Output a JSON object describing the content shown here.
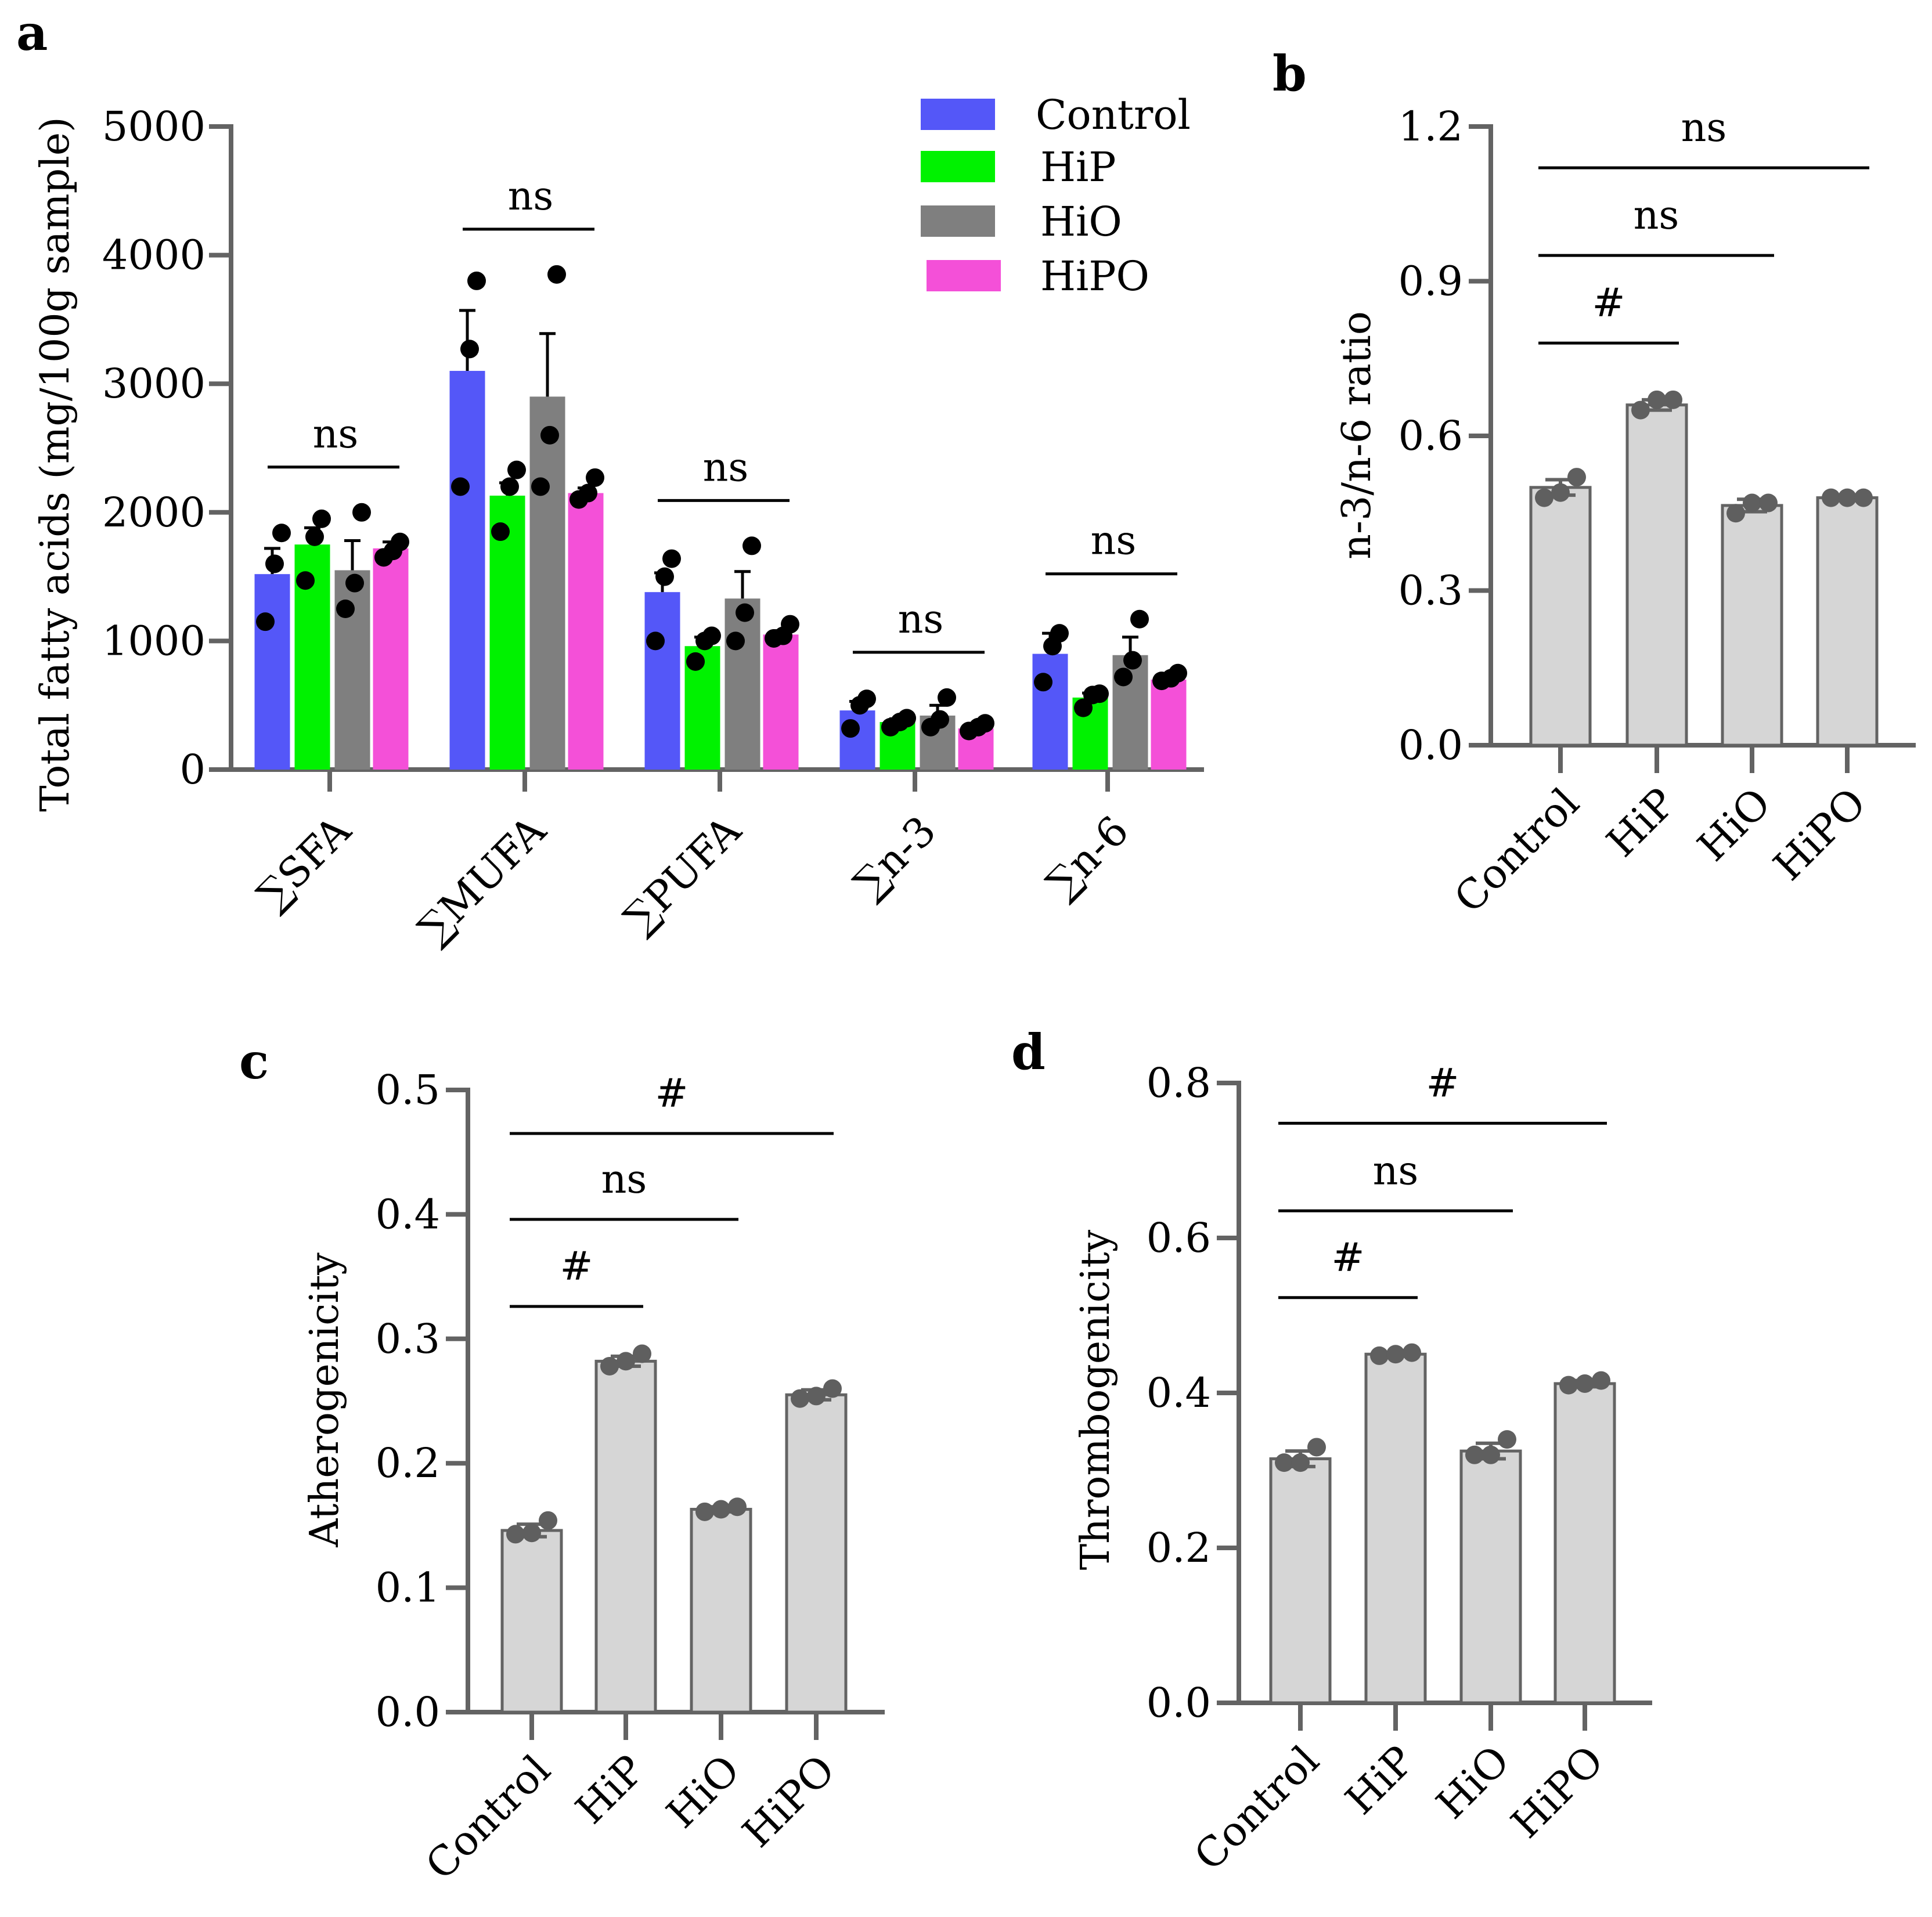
{
  "colors": {
    "Control": "#5457f8",
    "HiP": "#00f200",
    "HiO": "#7f7f7f",
    "HiPO": "#f450d8",
    "gray_bar": "#d6d6d6",
    "gray_edge": "#636363",
    "dot_dark": "#000000",
    "dot_gray": "#5f5f5f"
  },
  "chart_data": [
    {
      "panel": "a",
      "type": "bar",
      "title": "",
      "xlabel": "",
      "ylabel": "Total fatty acids (mg/100g sample)",
      "ylim": [
        0,
        5000
      ],
      "yticks": [
        0,
        1000,
        2000,
        3000,
        4000,
        5000
      ],
      "categories": [
        "∑SFA",
        "∑MUFA",
        "∑PUFA",
        "∑n-3",
        "∑n-6"
      ],
      "legend": {
        "position": "top-right",
        "entries": [
          "Control",
          "HiP",
          "HiO",
          "HiPO"
        ]
      },
      "series": [
        {
          "name": "Control",
          "values": [
            1520,
            3100,
            1380,
            460,
            900
          ],
          "errors": [
            200,
            470,
            150,
            70,
            160
          ],
          "points": [
            [
              1150,
              1600,
              1840
            ],
            [
              2200,
              3270,
              3800
            ],
            [
              1000,
              1500,
              1640
            ],
            [
              320,
              500,
              550
            ],
            [
              680,
              960,
              1060
            ]
          ]
        },
        {
          "name": "HiP",
          "values": [
            1750,
            2130,
            960,
            370,
            560
          ],
          "errors": [
            130,
            100,
            70,
            25,
            35
          ],
          "points": [
            [
              1470,
              1810,
              1950
            ],
            [
              1850,
              2200,
              2330
            ],
            [
              840,
              1000,
              1040
            ],
            [
              330,
              370,
              400
            ],
            [
              480,
              580,
              590
            ]
          ]
        },
        {
          "name": "HiO",
          "values": [
            1550,
            2900,
            1330,
            420,
            890
          ],
          "errors": [
            230,
            490,
            210,
            80,
            140
          ],
          "points": [
            [
              1250,
              1450,
              2000
            ],
            [
              2200,
              2600,
              3850
            ],
            [
              1000,
              1220,
              1740
            ],
            [
              330,
              390,
              560
            ],
            [
              720,
              850,
              1170
            ]
          ]
        },
        {
          "name": "HiPO",
          "values": [
            1720,
            2150,
            1050,
            320,
            700
          ],
          "errors": [
            50,
            40,
            30,
            20,
            20
          ],
          "points": [
            [
              1650,
              1700,
              1770
            ],
            [
              2100,
              2150,
              2270
            ],
            [
              1020,
              1040,
              1130
            ],
            [
              300,
              330,
              360
            ],
            [
              690,
              710,
              750
            ]
          ]
        }
      ],
      "annotations": [
        {
          "category": "∑SFA",
          "text": "ns"
        },
        {
          "category": "∑MUFA",
          "text": "ns"
        },
        {
          "category": "∑PUFA",
          "text": "ns"
        },
        {
          "category": "∑n-3",
          "text": "ns"
        },
        {
          "category": "∑n-6",
          "text": "ns"
        }
      ]
    },
    {
      "panel": "b",
      "type": "bar",
      "title": "",
      "xlabel": "",
      "ylabel": "n-3/n-6 ratio",
      "ylim": [
        0,
        1.2
      ],
      "yticks": [
        "0.0",
        "0.3",
        "0.6",
        "0.9",
        "1.2"
      ],
      "categories": [
        "Control",
        "HiP",
        "HiO",
        "HiPO"
      ],
      "values": [
        0.5,
        0.66,
        0.465,
        0.48
      ],
      "errors": [
        0.015,
        0.01,
        0.012,
        0.003
      ],
      "points": [
        [
          0.48,
          0.49,
          0.52
        ],
        [
          0.65,
          0.67,
          0.67
        ],
        [
          0.45,
          0.47,
          0.47
        ],
        [
          0.48,
          0.48,
          0.48
        ]
      ],
      "brackets": [
        {
          "from": "Control",
          "to": "HiP",
          "text": "#"
        },
        {
          "from": "Control",
          "to": "HiO",
          "text": "ns"
        },
        {
          "from": "Control",
          "to": "HiPO",
          "text": "ns"
        }
      ]
    },
    {
      "panel": "c",
      "type": "bar",
      "title": "",
      "xlabel": "",
      "ylabel": "Atherogenicity",
      "ylim": [
        0,
        0.5
      ],
      "yticks": [
        "0.0",
        "0.1",
        "0.2",
        "0.3",
        "0.4",
        "0.5"
      ],
      "categories": [
        "Control",
        "HiP",
        "HiO",
        "HiPO"
      ],
      "values": [
        0.146,
        0.282,
        0.163,
        0.255
      ],
      "errors": [
        0.005,
        0.004,
        0.002,
        0.004
      ],
      "points": [
        [
          0.143,
          0.144,
          0.154
        ],
        [
          0.278,
          0.282,
          0.288
        ],
        [
          0.161,
          0.163,
          0.165
        ],
        [
          0.252,
          0.254,
          0.26
        ]
      ],
      "brackets": [
        {
          "from": "Control",
          "to": "HiP",
          "text": "#"
        },
        {
          "from": "Control",
          "to": "HiO",
          "text": "ns"
        },
        {
          "from": "Control",
          "to": "HiPO",
          "text": "#"
        }
      ]
    },
    {
      "panel": "d",
      "type": "bar",
      "title": "",
      "xlabel": "",
      "ylabel": "Thrombogenicity",
      "ylim": [
        0,
        0.8
      ],
      "yticks": [
        "0.0",
        "0.2",
        "0.4",
        "0.6",
        "0.8"
      ],
      "categories": [
        "Control",
        "HiP",
        "HiO",
        "HiPO"
      ],
      "values": [
        0.315,
        0.45,
        0.325,
        0.412
      ],
      "errors": [
        0.01,
        0.002,
        0.01,
        0.004
      ],
      "points": [
        [
          0.31,
          0.31,
          0.33
        ],
        [
          0.448,
          0.45,
          0.452
        ],
        [
          0.32,
          0.32,
          0.34
        ],
        [
          0.41,
          0.412,
          0.416
        ]
      ],
      "brackets": [
        {
          "from": "Control",
          "to": "HiP",
          "text": "#"
        },
        {
          "from": "Control",
          "to": "HiO",
          "text": "ns"
        },
        {
          "from": "Control",
          "to": "HiPO",
          "text": "#"
        }
      ]
    }
  ]
}
